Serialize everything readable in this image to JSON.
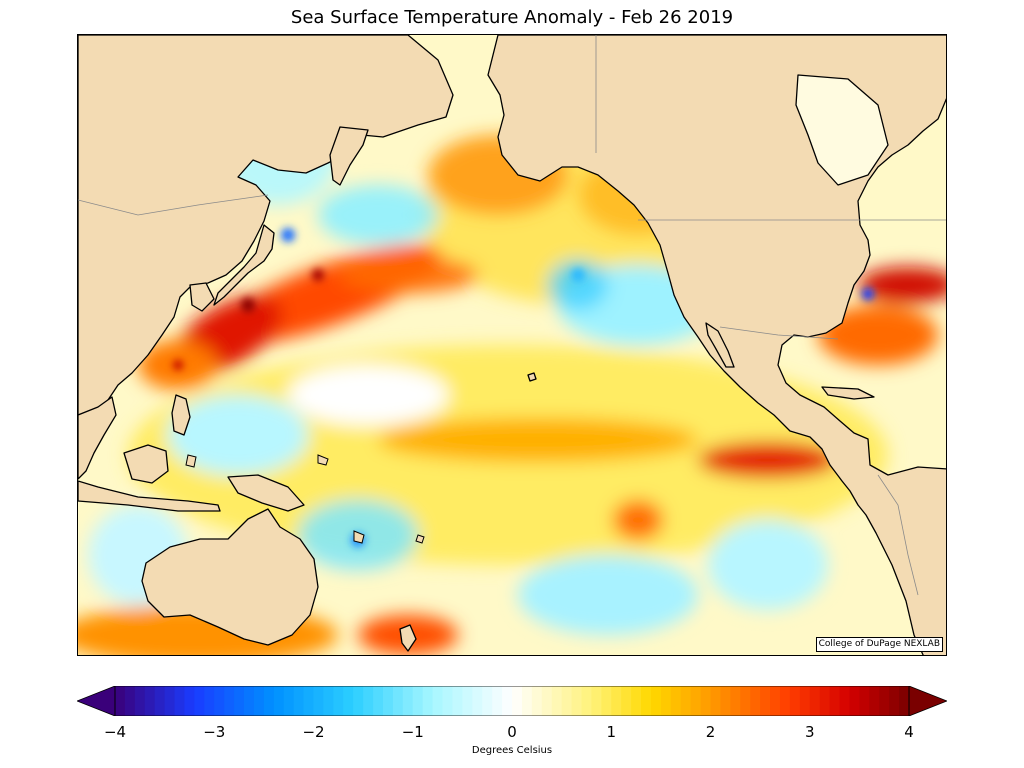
{
  "title": "Sea Surface Temperature Anomaly - Feb 26 2019",
  "credit": "College of DuPage NEXLAB",
  "colorbar": {
    "label": "Degrees Celsius",
    "min": -4,
    "max": 4,
    "extend": "both",
    "ticks": [
      {
        "value": -4,
        "label": "−4"
      },
      {
        "value": -3,
        "label": "−3"
      },
      {
        "value": -2,
        "label": "−2"
      },
      {
        "value": -1,
        "label": "−1"
      },
      {
        "value": 0,
        "label": "0"
      },
      {
        "value": 1,
        "label": "1"
      },
      {
        "value": 2,
        "label": "2"
      },
      {
        "value": 3,
        "label": "3"
      },
      {
        "value": 4,
        "label": "4"
      }
    ],
    "color_stops": [
      {
        "value": -4,
        "color": "#3a007a"
      },
      {
        "value": -3.2,
        "color": "#1a3cff"
      },
      {
        "value": -2.4,
        "color": "#0090ff"
      },
      {
        "value": -1.6,
        "color": "#2ccfff"
      },
      {
        "value": -0.8,
        "color": "#a6f6ff"
      },
      {
        "value": 0,
        "color": "#ffffff"
      },
      {
        "value": 0.8,
        "color": "#fff27a"
      },
      {
        "value": 1.4,
        "color": "#ffd800"
      },
      {
        "value": 2.0,
        "color": "#ff9a00"
      },
      {
        "value": 2.8,
        "color": "#ff3c00"
      },
      {
        "value": 3.4,
        "color": "#d40000"
      },
      {
        "value": 4,
        "color": "#7a0000"
      }
    ]
  },
  "colors": {
    "land": "#f3dbb3",
    "coast": "#000000",
    "border": "#8a8a8a",
    "ocean_base": "#ffffff"
  }
}
